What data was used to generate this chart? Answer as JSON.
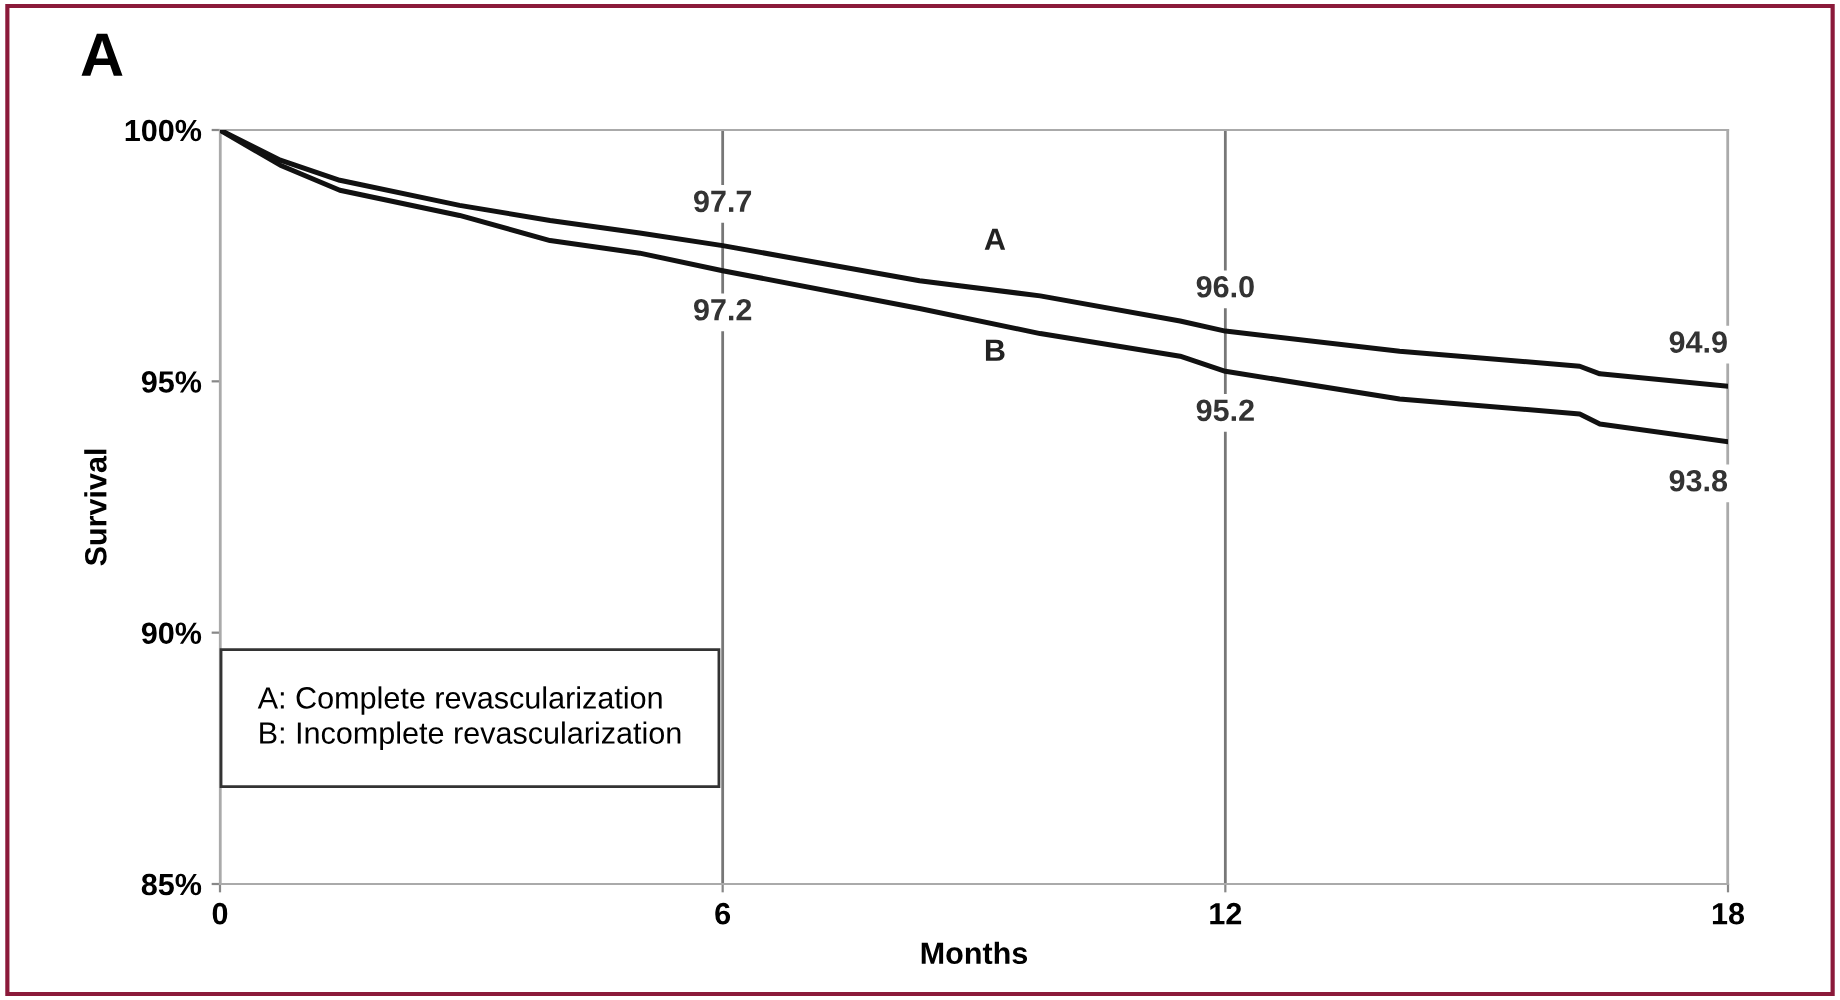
{
  "chart_data": {
    "type": "line",
    "title": "A",
    "xlabel": "Months",
    "ylabel": "Survival",
    "xlim": [
      0,
      18
    ],
    "xticks": [
      0,
      6,
      12,
      18
    ],
    "ylim": [
      85,
      100
    ],
    "yticks": [
      {
        "value": 85,
        "label": "85%"
      },
      {
        "value": 90,
        "label": "90%"
      },
      {
        "value": 95,
        "label": "95%"
      },
      {
        "value": 100,
        "label": "100%"
      }
    ],
    "grid": "x",
    "legend": false,
    "line_style": "solid",
    "series": [
      {
        "name": "A",
        "color": "#111111",
        "x": [
          0,
          0.72,
          1.43,
          2.86,
          3.94,
          5.01,
          6,
          8.35,
          9.79,
          11.46,
          12,
          14.08,
          16.23,
          16.47,
          18
        ],
        "values": [
          100,
          99.4,
          99.0,
          98.5,
          98.2,
          97.95,
          97.7,
          97.0,
          96.7,
          96.2,
          96.0,
          95.6,
          95.3,
          95.15,
          94.9
        ]
      },
      {
        "name": "B",
        "color": "#111111",
        "x": [
          0,
          0.72,
          1.43,
          2.86,
          3.94,
          5.01,
          6,
          8.35,
          9.79,
          11.46,
          12,
          14.08,
          16.23,
          16.47,
          18
        ],
        "values": [
          100,
          99.3,
          98.8,
          98.3,
          97.8,
          97.55,
          97.2,
          96.45,
          95.95,
          95.5,
          95.2,
          94.65,
          94.35,
          94.15,
          93.8
        ]
      }
    ],
    "annotations": [
      {
        "text": "97.7",
        "x": 6,
        "y": 97.7
      },
      {
        "text": "97.2",
        "x": 6,
        "y": 97.2
      },
      {
        "text": "96.0",
        "x": 12,
        "y": 96.0
      },
      {
        "text": "95.2",
        "x": 12,
        "y": 95.2
      },
      {
        "text": "94.9",
        "x": 18,
        "y": 94.9
      },
      {
        "text": "93.8",
        "x": 18,
        "y": 93.8
      },
      "A: Complete revascularization",
      "B: Incomplete revascularization"
    ]
  }
}
